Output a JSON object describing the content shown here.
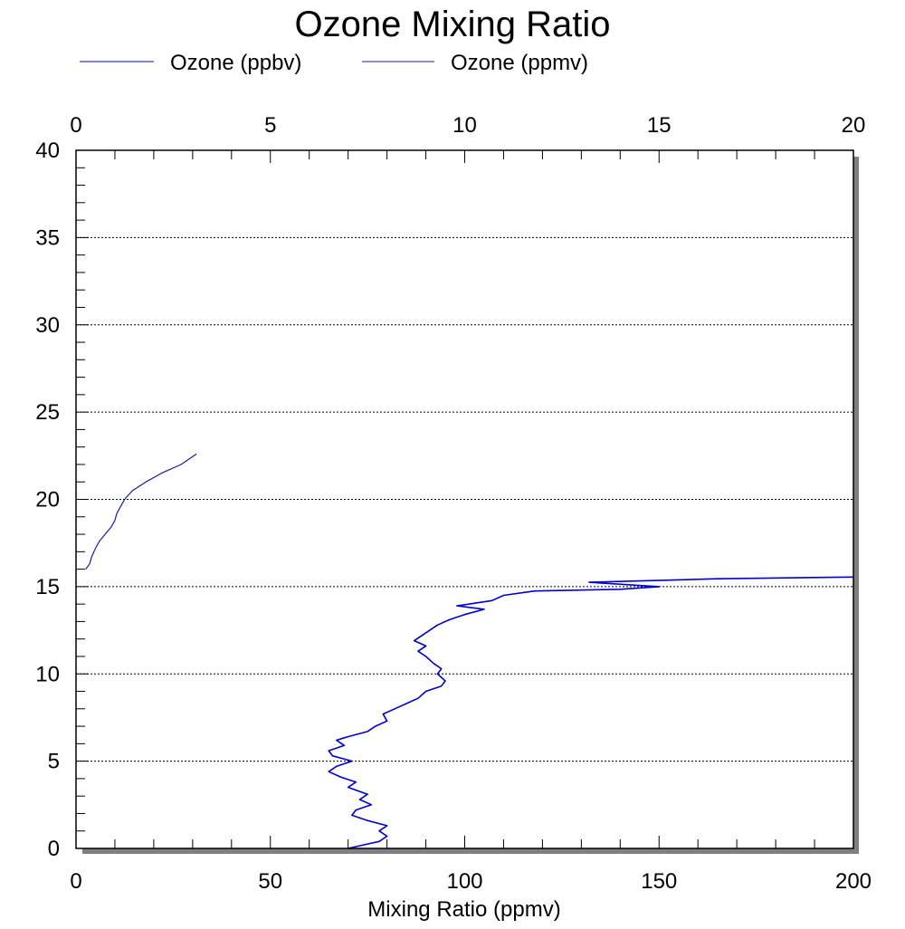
{
  "chart_data": {
    "type": "line",
    "title": "Ozone Mixing Ratio",
    "xlabel": "Mixing Ratio (ppmv)",
    "ylabel": "",
    "bottom_axis": {
      "range": [
        0,
        200
      ],
      "ticks": [
        "0",
        "50",
        "100",
        "150",
        "200"
      ]
    },
    "top_axis": {
      "range": [
        0,
        20
      ],
      "ticks": [
        "0",
        "5",
        "10",
        "15",
        "20"
      ]
    },
    "y_axis": {
      "range": [
        0,
        40
      ],
      "ticks": [
        "0",
        "5",
        "10",
        "15",
        "20",
        "25",
        "30",
        "35",
        "40"
      ]
    },
    "grid": "dotted horizontal lines at y ticks",
    "legend": {
      "placement": "top-left"
    },
    "series": [
      {
        "name": "Ozone (ppbv)",
        "color": "#0000cc",
        "axis": "bottom",
        "points": [
          [
            70,
            0
          ],
          [
            74,
            0.2
          ],
          [
            78,
            0.4
          ],
          [
            80,
            0.7
          ],
          [
            78,
            1.0
          ],
          [
            80,
            1.3
          ],
          [
            75,
            1.6
          ],
          [
            71,
            1.9
          ],
          [
            72,
            2.2
          ],
          [
            76,
            2.5
          ],
          [
            73,
            2.8
          ],
          [
            75,
            3.1
          ],
          [
            70,
            3.5
          ],
          [
            72,
            3.8
          ],
          [
            68,
            4.1
          ],
          [
            65,
            4.4
          ],
          [
            67,
            4.7
          ],
          [
            71,
            5.0
          ],
          [
            66,
            5.3
          ],
          [
            65,
            5.6
          ],
          [
            69,
            5.9
          ],
          [
            67,
            6.2
          ],
          [
            70,
            6.4
          ],
          [
            75,
            6.7
          ],
          [
            77,
            7.0
          ],
          [
            80,
            7.3
          ],
          [
            79,
            7.7
          ],
          [
            82,
            8.0
          ],
          [
            85,
            8.3
          ],
          [
            88,
            8.6
          ],
          [
            90,
            9.0
          ],
          [
            94,
            9.3
          ],
          [
            95,
            9.6
          ],
          [
            93,
            10.0
          ],
          [
            94,
            10.3
          ],
          [
            92,
            10.6
          ],
          [
            90,
            11.0
          ],
          [
            88,
            11.3
          ],
          [
            90,
            11.6
          ],
          [
            87,
            11.9
          ],
          [
            89,
            12.2
          ],
          [
            91,
            12.5
          ],
          [
            93,
            12.8
          ],
          [
            96,
            13.1
          ],
          [
            100,
            13.4
          ],
          [
            105,
            13.7
          ],
          [
            98,
            13.9
          ],
          [
            107,
            14.2
          ],
          [
            110,
            14.5
          ],
          [
            118,
            14.75
          ],
          [
            140,
            14.85
          ],
          [
            150,
            15.0
          ],
          [
            132,
            15.25
          ],
          [
            165,
            15.45
          ],
          [
            200,
            15.55
          ]
        ]
      },
      {
        "name": "Ozone (ppmv)",
        "color": "#1a1aaa",
        "axis": "top",
        "points": [
          [
            0.25,
            16.0
          ],
          [
            0.35,
            16.3
          ],
          [
            0.4,
            16.7
          ],
          [
            0.5,
            17.2
          ],
          [
            0.6,
            17.6
          ],
          [
            0.75,
            18.0
          ],
          [
            0.9,
            18.4
          ],
          [
            1.0,
            18.8
          ],
          [
            1.05,
            19.2
          ],
          [
            1.15,
            19.6
          ],
          [
            1.25,
            20.0
          ],
          [
            1.45,
            20.5
          ],
          [
            1.8,
            21.0
          ],
          [
            2.2,
            21.5
          ],
          [
            2.7,
            22.0
          ],
          [
            3.1,
            22.6
          ]
        ]
      }
    ]
  }
}
